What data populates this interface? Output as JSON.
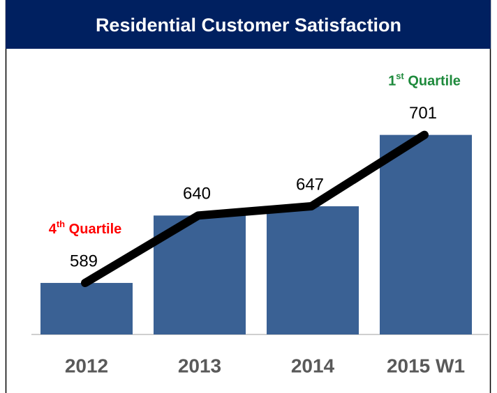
{
  "chart_data": {
    "type": "bar",
    "title": "Residential Customer Satisfaction",
    "categories": [
      "2012",
      "2013",
      "2014",
      "2015 W1"
    ],
    "values": [
      589,
      640,
      647,
      701
    ],
    "color": "#3a6194",
    "line_color": "#000000",
    "ylim": [
      550,
      724
    ],
    "annotations": [
      {
        "category": "2012",
        "parts": [
          "4",
          "th",
          " Quartile"
        ],
        "color": "#ff0000"
      },
      {
        "category": "2015 W1",
        "parts": [
          "1",
          "st",
          " Quartile"
        ],
        "color": "#1e8a3c"
      }
    ]
  }
}
